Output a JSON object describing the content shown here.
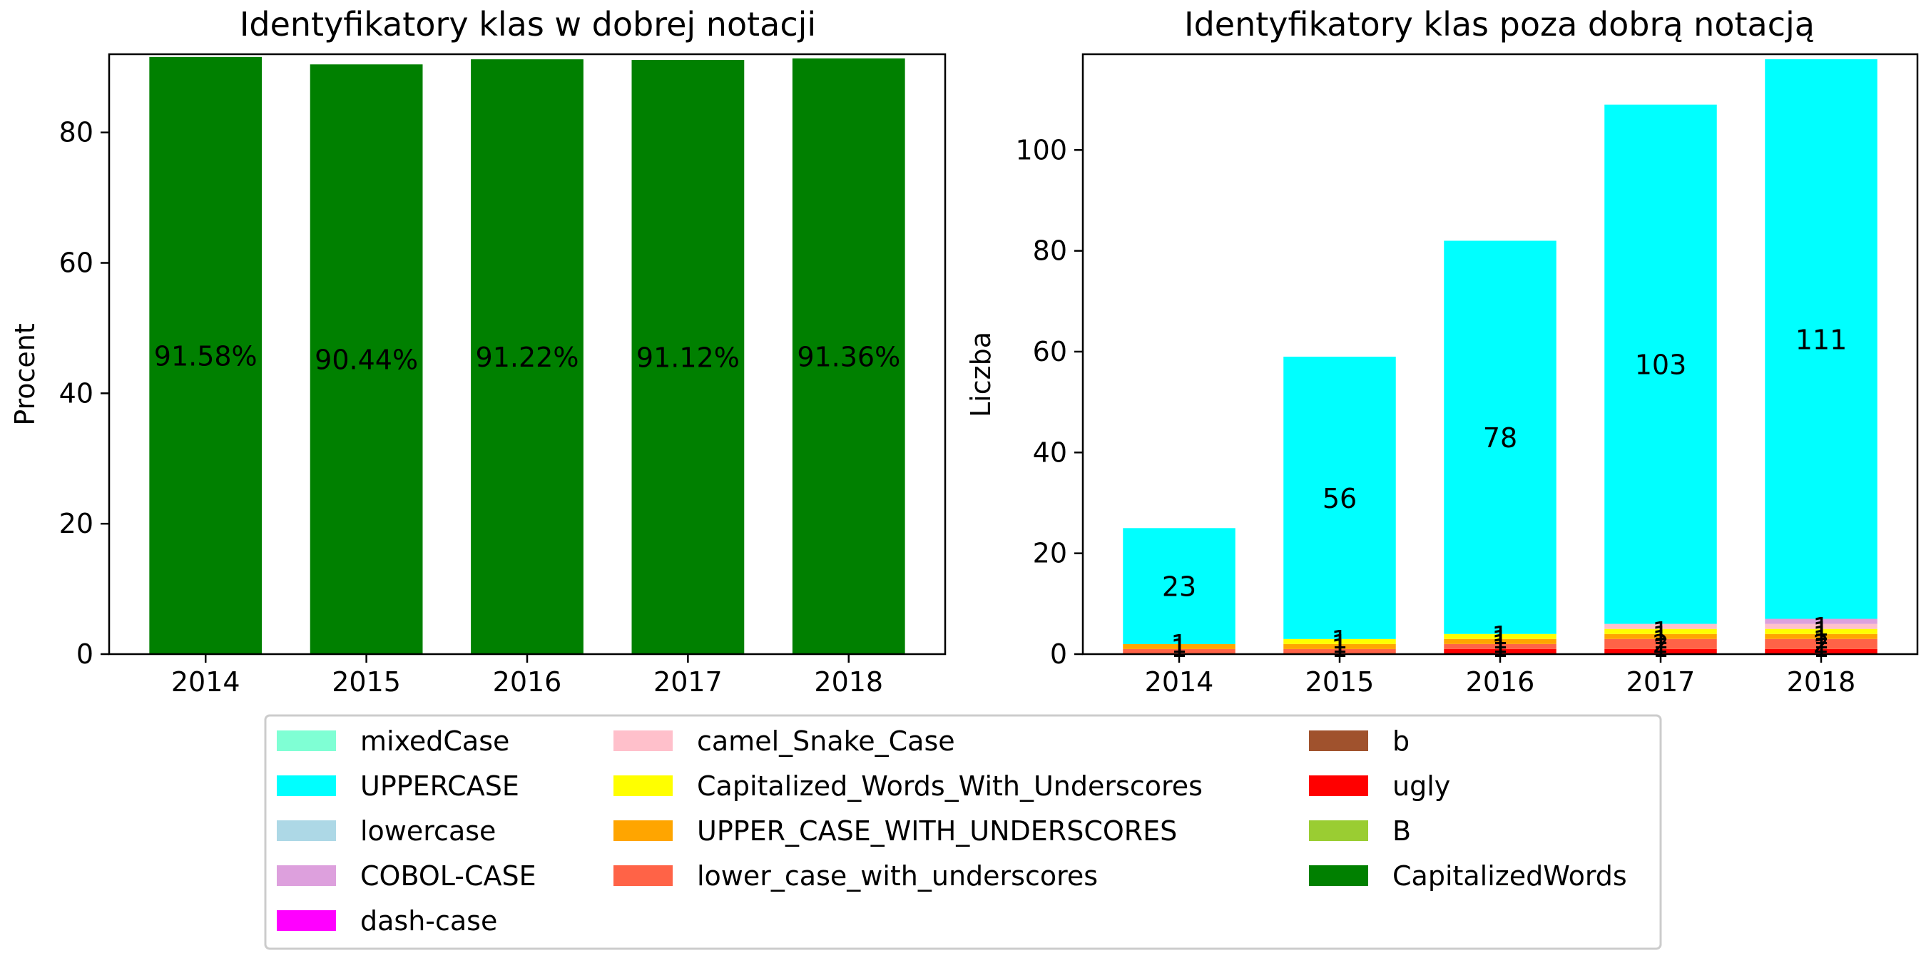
{
  "chart_data": [
    {
      "type": "bar",
      "title": "Identyfikatory klas w dobrej notacji",
      "xlabel": "",
      "ylabel": "Procent",
      "ylim": [
        0,
        92
      ],
      "yticks": [
        "0",
        "20",
        "40",
        "60",
        "80"
      ],
      "categories": [
        "2014",
        "2015",
        "2016",
        "2017",
        "2018"
      ],
      "series": [
        {
          "name": "CapitalizedWords",
          "color": "#008000",
          "values": [
            91.58,
            90.44,
            91.22,
            91.12,
            91.36
          ]
        }
      ],
      "data_labels": [
        "91.58%",
        "90.44%",
        "91.22%",
        "91.12%",
        "91.36%"
      ],
      "grid": false
    },
    {
      "type": "bar",
      "stacked": true,
      "title": "Identyfikatory klas poza dobrą notacją",
      "xlabel": "",
      "ylabel": "Liczba",
      "ylim": [
        0,
        119
      ],
      "yticks": [
        "0",
        "20",
        "40",
        "60",
        "80",
        "100"
      ],
      "categories": [
        "2014",
        "2015",
        "2016",
        "2017",
        "2018"
      ],
      "series": [
        {
          "name": "ugly",
          "color": "#ff0000",
          "values": [
            0,
            0,
            1,
            1,
            1
          ]
        },
        {
          "name": "lower_case_with_underscores",
          "color": "#ff6347",
          "values": [
            1,
            1,
            1,
            2,
            2
          ]
        },
        {
          "name": "UPPER_CASE_WITH_UNDERSCORES",
          "color": "#ffa500",
          "values": [
            1,
            1,
            1,
            1,
            1
          ]
        },
        {
          "name": "Capitalized_Words_With_Underscores",
          "color": "#ffff00",
          "values": [
            0,
            1,
            1,
            1,
            1
          ]
        },
        {
          "name": "camel_Snake_Case",
          "color": "#ffc0cb",
          "values": [
            0,
            0,
            0,
            1,
            1
          ]
        },
        {
          "name": "COBOL-CASE",
          "color": "#dda0dd",
          "values": [
            0,
            0,
            0,
            0,
            1
          ]
        },
        {
          "name": "UPPERCASE",
          "color": "#00ffff",
          "values": [
            23,
            56,
            78,
            103,
            111
          ]
        }
      ],
      "data_labels": [
        {
          "category": "2014",
          "labels": [
            "1",
            "1"
          ]
        },
        {
          "category": "2015",
          "labels": [
            "1",
            "1",
            "1"
          ]
        },
        {
          "category": "2016",
          "labels": [
            "1",
            "1",
            "1",
            "1"
          ]
        },
        {
          "category": "2017",
          "labels": [
            "1",
            "2",
            "1",
            "1",
            "1"
          ]
        },
        {
          "category": "2018",
          "labels": [
            "1",
            "2",
            "1",
            "1",
            "1",
            "1"
          ]
        }
      ],
      "grid": false
    }
  ],
  "legend": {
    "placement": "bottom-center",
    "columns": [
      [
        {
          "label": "mixedCase",
          "color": "#7fffd4"
        },
        {
          "label": "UPPERCASE",
          "color": "#00ffff"
        },
        {
          "label": "lowercase",
          "color": "#add8e6"
        },
        {
          "label": "COBOL-CASE",
          "color": "#dda0dd"
        },
        {
          "label": "dash-case",
          "color": "#ff00ff"
        }
      ],
      [
        {
          "label": "camel_Snake_Case",
          "color": "#ffc0cb"
        },
        {
          "label": "Capitalized_Words_With_Underscores",
          "color": "#ffff00"
        },
        {
          "label": "UPPER_CASE_WITH_UNDERSCORES",
          "color": "#ffa500"
        },
        {
          "label": "lower_case_with_underscores",
          "color": "#ff6347"
        }
      ],
      [
        {
          "label": "b",
          "color": "#a0522d"
        },
        {
          "label": "ugly",
          "color": "#ff0000"
        },
        {
          "label": "B",
          "color": "#9acd32"
        },
        {
          "label": "CapitalizedWords",
          "color": "#008000"
        }
      ]
    ]
  }
}
